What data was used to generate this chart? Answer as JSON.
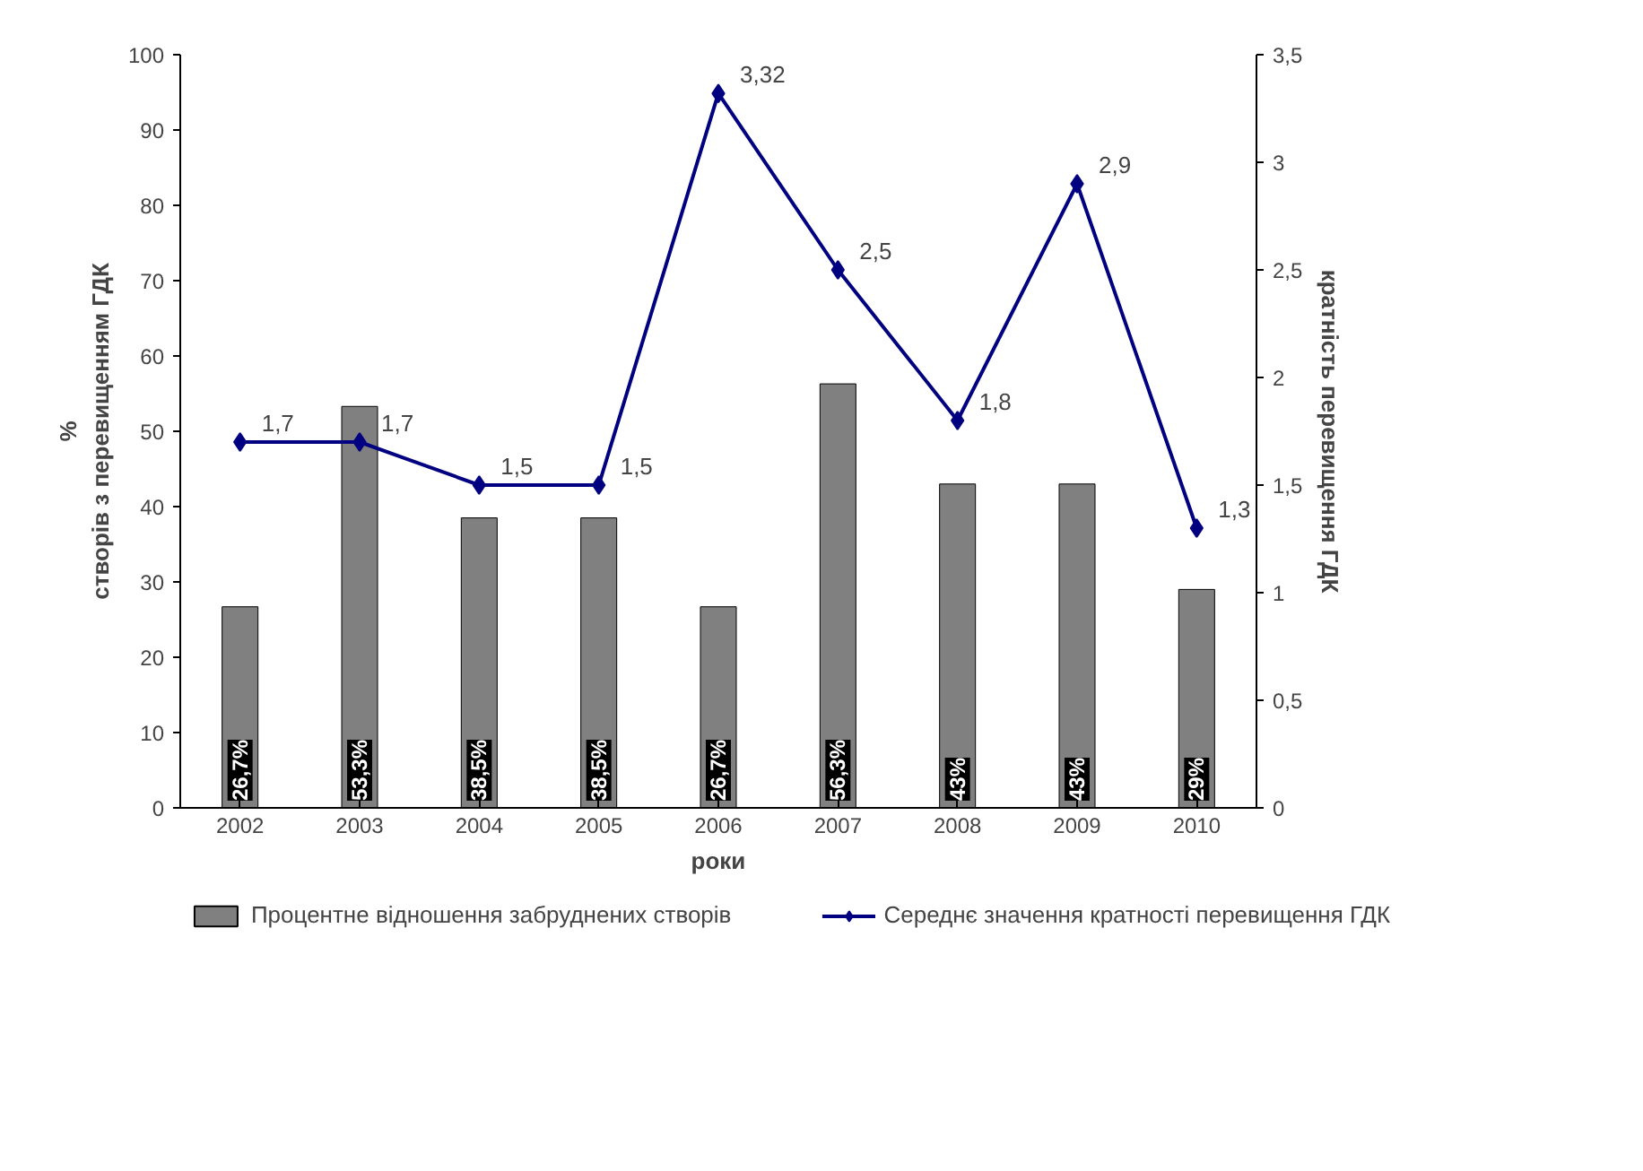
{
  "chart_data": {
    "type": "bar",
    "categories": [
      "2002",
      "2003",
      "2004",
      "2005",
      "2006",
      "2007",
      "2008",
      "2009",
      "2010"
    ],
    "xlabel": "роки",
    "ylabel": "%\nстворів з перевищенням ГДК",
    "y2label": "кратність перевищення ГДК",
    "ylim": [
      0,
      100
    ],
    "yticks": [
      0,
      10,
      20,
      30,
      40,
      50,
      60,
      70,
      80,
      90,
      100
    ],
    "y2lim": [
      0,
      3.5
    ],
    "y2ticks": [
      0,
      {
        "value": 0.5,
        "label": "0,5"
      },
      1,
      {
        "value": 1.5,
        "label": "1,5"
      },
      2,
      {
        "value": 2.5,
        "label": "2,5"
      },
      3,
      {
        "value": 3.5,
        "label": "3,5"
      }
    ],
    "legend": "bottom",
    "grid": false,
    "series": [
      {
        "name": "Процентне відношення забруднених створів",
        "color": "#808080",
        "values": [
          26.7,
          53.3,
          38.5,
          38.5,
          26.7,
          56.3,
          43,
          43,
          29
        ],
        "value_labels": [
          "26,7%",
          "53,3%",
          "38,5%",
          "38,5%",
          "26,7%",
          "56,3%",
          "43%",
          "43%",
          "29%"
        ]
      },
      {
        "name": "Середнє значення кратності перевищення ГДК",
        "type": "line",
        "axis": "y2",
        "color": "#000080",
        "marker": "diamond",
        "values": [
          1.7,
          1.7,
          1.5,
          1.5,
          3.32,
          2.5,
          1.8,
          2.9,
          1.3
        ],
        "value_labels": [
          "1,7",
          "1,7",
          "1,5",
          "1,5",
          "3,32",
          "2,5",
          "1,8",
          "2,9",
          "1,3"
        ]
      }
    ]
  }
}
